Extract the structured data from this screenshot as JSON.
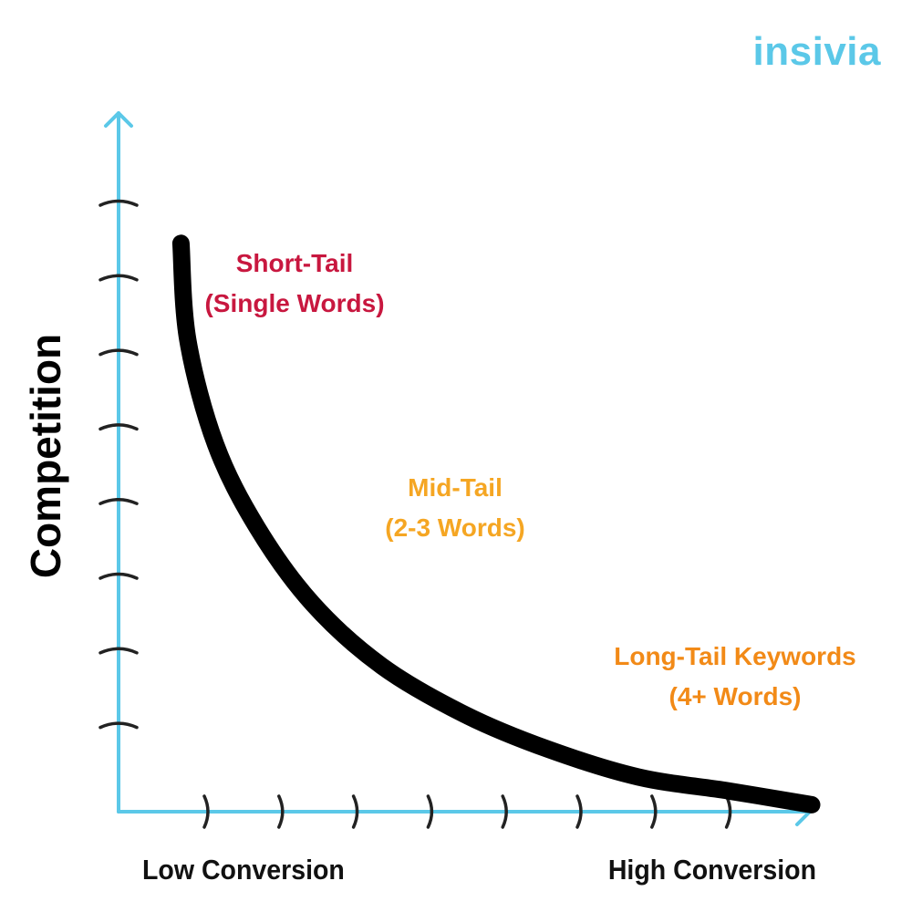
{
  "brand": {
    "logo_text": "insivia",
    "color": "#5bc8e8"
  },
  "colors": {
    "axis": "#5bc8e8",
    "curve": "#000000",
    "tick": "#222222",
    "short_tail": "#c8173f",
    "mid_tail": "#f5a623",
    "long_tail": "#f28a17"
  },
  "chart_data": {
    "type": "line",
    "title": "",
    "xlabel": "",
    "ylabel": "Competition",
    "x_tick_labels": {
      "low": "Low Conversion",
      "high": "High Conversion"
    },
    "x_tick_count": 8,
    "y_tick_count": 8,
    "grid": false,
    "series": [
      {
        "x": [
          0.09,
          0.1,
          0.14,
          0.2,
          0.28,
          0.38,
          0.5,
          0.62,
          0.75,
          0.88,
          1.0
        ],
        "y": [
          0.82,
          0.68,
          0.53,
          0.41,
          0.3,
          0.21,
          0.14,
          0.09,
          0.05,
          0.03,
          0.01
        ]
      }
    ],
    "annotations": [
      {
        "line1": "Short-Tail",
        "line2": "(Single Words)",
        "color_key": "short_tail"
      },
      {
        "line1": "Mid-Tail",
        "line2": "(2-3 Words)",
        "color_key": "mid_tail"
      },
      {
        "line1": "Long-Tail Keywords",
        "line2": "(4+ Words)",
        "color_key": "long_tail"
      }
    ]
  }
}
